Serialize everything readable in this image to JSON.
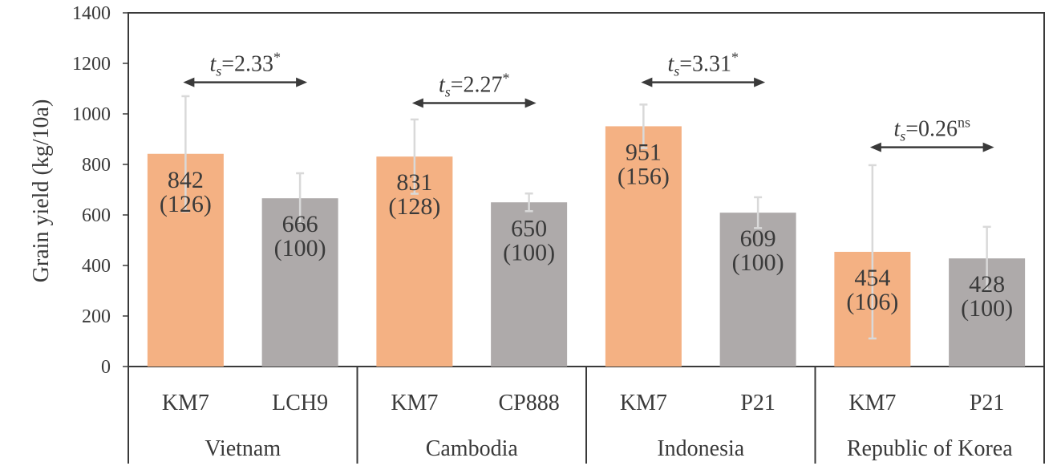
{
  "chart_data": {
    "type": "bar",
    "ylabel": "Grain yield  (kg/10a)",
    "ylim": [
      0,
      1400
    ],
    "yticks": [
      0,
      200,
      400,
      600,
      800,
      1000,
      1200,
      1400
    ],
    "groups": [
      {
        "name": "Vietnam",
        "bars": [
          {
            "label": "KM7",
            "value": 842,
            "index": "(126)",
            "error_top": 1070,
            "error_bottom": 614,
            "color": "#f4b183"
          },
          {
            "label": "LCH9",
            "value": 666,
            "index": "(100)",
            "error_top": 765,
            "error_bottom": 567,
            "color": "#aeaaaa"
          }
        ],
        "test": {
          "symbol": "t",
          "sub": "s",
          "text": "=2.33",
          "sup": "*"
        }
      },
      {
        "name": "Cambodia",
        "bars": [
          {
            "label": "KM7",
            "value": 831,
            "index": "(128)",
            "error_top": 978,
            "error_bottom": 684,
            "color": "#f4b183"
          },
          {
            "label": "CP888",
            "value": 650,
            "index": "(100)",
            "error_top": 685,
            "error_bottom": 615,
            "color": "#aeaaaa"
          }
        ],
        "test": {
          "symbol": "t",
          "sub": "s",
          "text": "=2.27",
          "sup": "*"
        }
      },
      {
        "name": "Indonesia",
        "bars": [
          {
            "label": "KM7",
            "value": 951,
            "index": "(156)",
            "error_top": 1037,
            "error_bottom": 865,
            "color": "#f4b183"
          },
          {
            "label": "P21",
            "value": 609,
            "index": "(100)",
            "error_top": 670,
            "error_bottom": 548,
            "color": "#aeaaaa"
          }
        ],
        "test": {
          "symbol": "t",
          "sub": "s",
          "text": "=3.31",
          "sup": "*"
        }
      },
      {
        "name": "Republic of Korea",
        "bars": [
          {
            "label": "KM7",
            "value": 454,
            "index": "(106)",
            "error_top": 797,
            "error_bottom": 111,
            "color": "#f4b183"
          },
          {
            "label": "P21",
            "value": 428,
            "index": "(100)",
            "error_top": 553,
            "error_bottom": 303,
            "color": "#aeaaaa"
          }
        ],
        "test": {
          "symbol": "t",
          "sub": "s",
          "text": "=0.26",
          "sup": "ns"
        }
      }
    ],
    "test_level": [
      1125,
      1043,
      1125,
      868
    ]
  }
}
